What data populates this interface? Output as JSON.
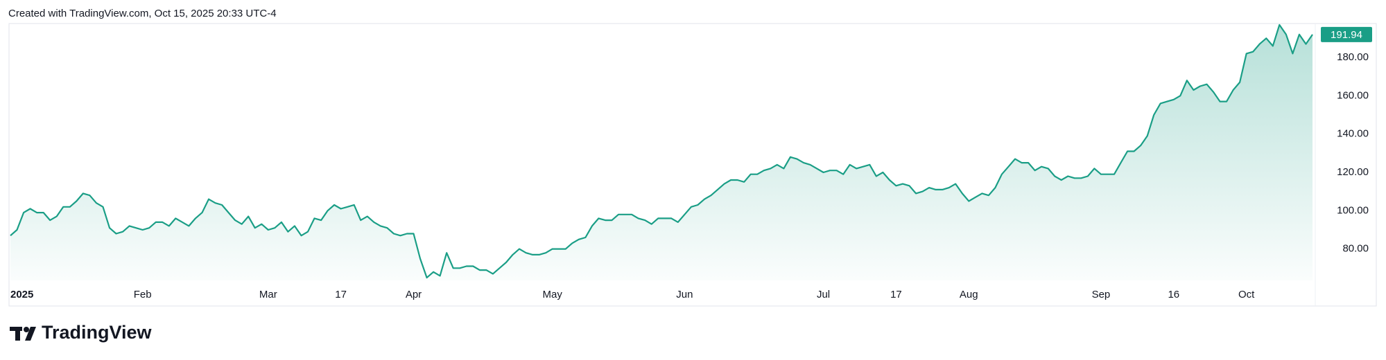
{
  "header": "Created with TradingView.com, Oct 15, 2025 20:33 UTC-4",
  "chart_data": {
    "type": "area",
    "color": "#1a9e86",
    "values": [
      87,
      90,
      99,
      101,
      99,
      99,
      95,
      97,
      102,
      102,
      105,
      109,
      108,
      104,
      102,
      91,
      88,
      89,
      92,
      91,
      90,
      91,
      94,
      94,
      92,
      96,
      94,
      92,
      96,
      99,
      106,
      104,
      103,
      99,
      95,
      93,
      97,
      91,
      93,
      90,
      91,
      94,
      89,
      92,
      87,
      89,
      96,
      95,
      100,
      103,
      101,
      102,
      103,
      95,
      97,
      94,
      92,
      91,
      88,
      87,
      88,
      88,
      75,
      65,
      68,
      66,
      78,
      70,
      70,
      71,
      71,
      69,
      69,
      67,
      70,
      73,
      77,
      80,
      78,
      77,
      77,
      78,
      80,
      80,
      80,
      83,
      85,
      86,
      92,
      96,
      95,
      95,
      98,
      98,
      98,
      96,
      95,
      93,
      96,
      96,
      96,
      94,
      98,
      102,
      103,
      106,
      108,
      111,
      114,
      116,
      116,
      115,
      119,
      119,
      121,
      122,
      124,
      122,
      128,
      127,
      125,
      124,
      122,
      120,
      121,
      121,
      119,
      124,
      122,
      123,
      124,
      118,
      120,
      116,
      113,
      114,
      113,
      109,
      110,
      112,
      111,
      111,
      112,
      114,
      109,
      105,
      107,
      109,
      108,
      112,
      119,
      123,
      127,
      125,
      125,
      121,
      123,
      122,
      118,
      116,
      118,
      117,
      117,
      118,
      122,
      119,
      119,
      119,
      125,
      131,
      131,
      134,
      139,
      150,
      156,
      157,
      158,
      160,
      168,
      163,
      165,
      166,
      162,
      157,
      157,
      163,
      167,
      182,
      183,
      187,
      190,
      186,
      197,
      192,
      182,
      192,
      187,
      191.94
    ],
    "xlim": [
      0,
      197
    ],
    "xticks": [
      {
        "value": 0,
        "label": "2025"
      },
      {
        "value": 20,
        "label": "Feb"
      },
      {
        "value": 39,
        "label": "Mar"
      },
      {
        "value": 50,
        "label": "17"
      },
      {
        "value": 61,
        "label": "Apr"
      },
      {
        "value": 82,
        "label": "May"
      },
      {
        "value": 102,
        "label": "Jun"
      },
      {
        "value": 123,
        "label": "Jul"
      },
      {
        "value": 134,
        "label": "17"
      },
      {
        "value": 145,
        "label": "Aug"
      },
      {
        "value": 165,
        "label": "Sep"
      },
      {
        "value": 176,
        "label": "16"
      },
      {
        "value": 187,
        "label": "Oct"
      }
    ],
    "ylim": [
      63.6,
      197.7
    ],
    "yticks": [
      {
        "value": 80,
        "label": "80.00"
      },
      {
        "value": 100,
        "label": "100.00"
      },
      {
        "value": 120,
        "label": "120.00"
      },
      {
        "value": 140,
        "label": "140.00"
      },
      {
        "value": 160,
        "label": "160.00"
      },
      {
        "value": 180,
        "label": "180.00"
      }
    ],
    "grid": false
  },
  "footer": {
    "brand": "TradingView"
  }
}
